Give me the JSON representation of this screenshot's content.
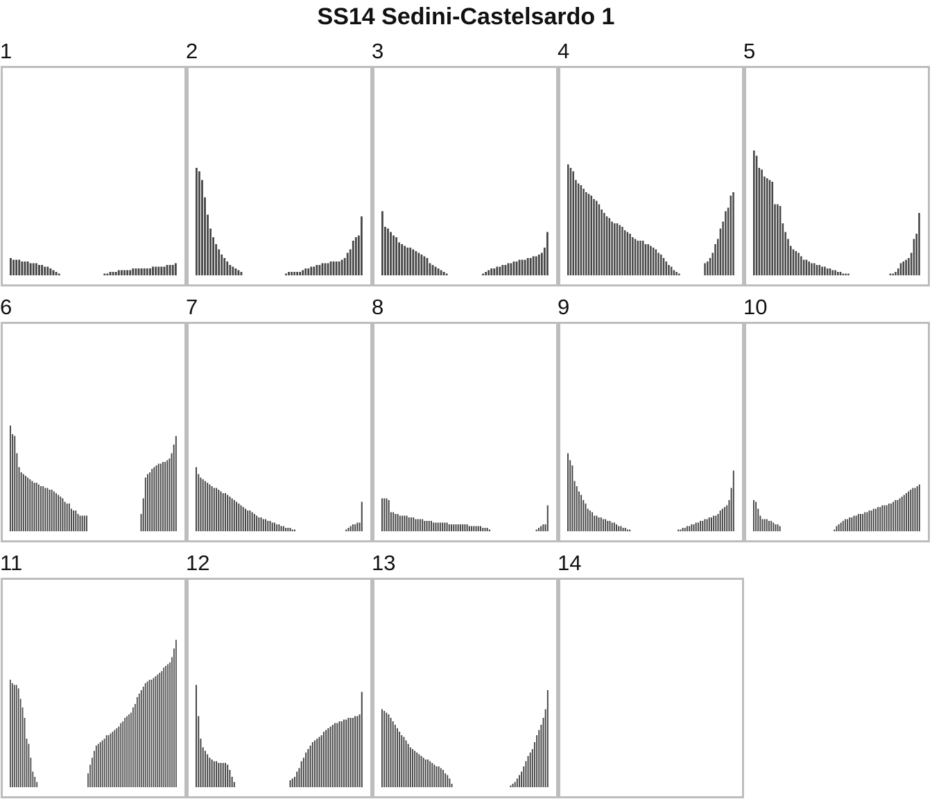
{
  "page_title": "SS14 Sedini-Castelsardo 1",
  "colors": {
    "bar": "#474747",
    "frame": "#bdbdbd",
    "background": "#ffffff"
  },
  "chart_data": {
    "type": "bar",
    "title": "SS14 Sedini-Castelsardo 1",
    "layout": "small-multiples",
    "y_range": [
      0,
      100
    ],
    "panels": [
      {
        "label": "1",
        "values": [
          10,
          9,
          9,
          9,
          8,
          8,
          8,
          7,
          7,
          7,
          6,
          6,
          5,
          5,
          4,
          3,
          2,
          1,
          0,
          0,
          0,
          0,
          0,
          0,
          0,
          0,
          0,
          0,
          0,
          0,
          0,
          0,
          0,
          1,
          1,
          2,
          2,
          2,
          3,
          3,
          3,
          3,
          3,
          4,
          4,
          4,
          4,
          4,
          4,
          4,
          5,
          5,
          5,
          5,
          5,
          6,
          6,
          6,
          7
        ]
      },
      {
        "label": "2",
        "values": [
          62,
          60,
          55,
          45,
          35,
          27,
          22,
          18,
          15,
          12,
          10,
          8,
          6,
          5,
          4,
          3,
          2,
          0,
          0,
          0,
          0,
          0,
          0,
          0,
          0,
          0,
          0,
          0,
          0,
          0,
          0,
          0,
          1,
          2,
          2,
          2,
          2,
          2,
          3,
          4,
          4,
          5,
          5,
          6,
          6,
          7,
          7,
          7,
          8,
          8,
          8,
          8,
          9,
          10,
          13,
          15,
          20,
          22,
          23,
          34
        ]
      },
      {
        "label": "3",
        "values": [
          37,
          28,
          27,
          25,
          23,
          22,
          19,
          18,
          17,
          16,
          16,
          15,
          14,
          13,
          12,
          11,
          10,
          7,
          6,
          5,
          4,
          3,
          2,
          1,
          0,
          0,
          0,
          0,
          0,
          0,
          0,
          0,
          0,
          0,
          0,
          0,
          1,
          2,
          3,
          4,
          4,
          5,
          5,
          6,
          6,
          7,
          7,
          8,
          8,
          9,
          9,
          9,
          10,
          10,
          11,
          11,
          12,
          13,
          16,
          25
        ]
      },
      {
        "label": "4",
        "values": [
          64,
          62,
          60,
          55,
          53,
          52,
          50,
          48,
          47,
          46,
          44,
          43,
          41,
          38,
          36,
          34,
          33,
          31,
          30,
          30,
          29,
          28,
          26,
          25,
          24,
          22,
          21,
          20,
          20,
          20,
          18,
          18,
          17,
          16,
          15,
          13,
          12,
          10,
          8,
          6,
          5,
          3,
          2,
          1,
          0,
          0,
          0,
          0,
          0,
          0,
          0,
          0,
          0,
          7,
          8,
          10,
          13,
          18,
          21,
          27,
          31,
          37,
          39,
          46,
          48
        ]
      },
      {
        "label": "5",
        "values": [
          72,
          69,
          62,
          61,
          57,
          56,
          55,
          54,
          41,
          41,
          40,
          30,
          25,
          21,
          17,
          15,
          14,
          13,
          11,
          9,
          9,
          8,
          7,
          7,
          6,
          6,
          5,
          5,
          4,
          4,
          3,
          3,
          2,
          2,
          1,
          1,
          1,
          0,
          0,
          0,
          0,
          0,
          0,
          0,
          0,
          0,
          0,
          0,
          0,
          0,
          0,
          0,
          1,
          1,
          2,
          4,
          7,
          8,
          9,
          10,
          13,
          21,
          24,
          36
        ]
      },
      {
        "label": "6",
        "values": [
          61,
          56,
          55,
          45,
          37,
          34,
          33,
          32,
          31,
          30,
          29,
          28,
          28,
          27,
          26,
          26,
          25,
          25,
          24,
          24,
          23,
          22,
          21,
          20,
          19,
          17,
          16,
          16,
          13,
          12,
          12,
          10,
          9,
          9,
          9,
          9,
          0,
          0,
          0,
          0,
          0,
          0,
          0,
          0,
          0,
          0,
          0,
          0,
          0,
          0,
          0,
          0,
          0,
          0,
          0,
          0,
          0,
          0,
          0,
          0,
          10,
          19,
          31,
          33,
          34,
          36,
          37,
          38,
          39,
          39,
          40,
          40,
          41,
          42,
          45,
          50,
          55
        ]
      },
      {
        "label": "7",
        "values": [
          37,
          33,
          31,
          30,
          29,
          28,
          27,
          26,
          25,
          25,
          24,
          23,
          22,
          22,
          21,
          20,
          19,
          18,
          17,
          16,
          15,
          14,
          13,
          12,
          12,
          11,
          10,
          9,
          8,
          8,
          7,
          7,
          6,
          6,
          5,
          5,
          4,
          4,
          3,
          3,
          2,
          2,
          2,
          1,
          1,
          0,
          0,
          0,
          0,
          0,
          0,
          0,
          0,
          0,
          0,
          0,
          0,
          0,
          0,
          0,
          0,
          0,
          0,
          0,
          0,
          0,
          0,
          1,
          2,
          3,
          4,
          4,
          5,
          5,
          17
        ]
      },
      {
        "label": "8",
        "values": [
          19,
          19,
          19,
          18,
          11,
          11,
          10,
          10,
          9,
          9,
          9,
          9,
          8,
          8,
          8,
          7,
          7,
          7,
          7,
          6,
          6,
          6,
          6,
          5,
          5,
          5,
          5,
          5,
          5,
          5,
          4,
          4,
          4,
          4,
          4,
          4,
          4,
          4,
          4,
          3,
          3,
          3,
          3,
          3,
          3,
          2,
          2,
          2,
          1,
          0,
          0,
          0,
          0,
          0,
          0,
          0,
          0,
          0,
          0,
          0,
          0,
          0,
          0,
          0,
          0,
          0,
          0,
          0,
          0,
          1,
          2,
          3,
          4,
          4,
          15
        ]
      },
      {
        "label": "9",
        "values": [
          45,
          41,
          38,
          29,
          26,
          23,
          21,
          18,
          16,
          13,
          12,
          11,
          9,
          9,
          8,
          8,
          7,
          7,
          6,
          6,
          5,
          5,
          4,
          3,
          3,
          2,
          2,
          1,
          1,
          0,
          0,
          0,
          0,
          0,
          0,
          0,
          0,
          0,
          0,
          0,
          0,
          0,
          0,
          0,
          0,
          0,
          0,
          0,
          0,
          0,
          1,
          1,
          2,
          2,
          3,
          3,
          4,
          4,
          5,
          5,
          6,
          6,
          7,
          7,
          8,
          8,
          9,
          9,
          10,
          12,
          13,
          14,
          15,
          18,
          25,
          35
        ]
      },
      {
        "label": "10",
        "values": [
          18,
          17,
          13,
          9,
          7,
          7,
          7,
          6,
          6,
          5,
          4,
          4,
          3,
          0,
          0,
          0,
          0,
          0,
          0,
          0,
          0,
          0,
          0,
          0,
          0,
          0,
          0,
          0,
          0,
          0,
          0,
          0,
          0,
          0,
          0,
          0,
          0,
          1,
          3,
          4,
          5,
          6,
          7,
          7,
          8,
          8,
          9,
          9,
          10,
          10,
          10,
          11,
          11,
          12,
          12,
          13,
          13,
          14,
          14,
          15,
          15,
          15,
          16,
          16,
          17,
          18,
          18,
          19,
          20,
          21,
          22,
          23,
          24,
          25,
          25,
          26,
          27
        ]
      },
      {
        "label": "11",
        "values": [
          62,
          60,
          59,
          59,
          57,
          51,
          46,
          40,
          28,
          25,
          17,
          9,
          6,
          3,
          0,
          0,
          0,
          0,
          0,
          0,
          0,
          0,
          0,
          0,
          0,
          0,
          0,
          0,
          0,
          0,
          0,
          0,
          0,
          0,
          0,
          0,
          0,
          0,
          8,
          13,
          17,
          21,
          24,
          25,
          26,
          27,
          28,
          30,
          30,
          31,
          32,
          33,
          34,
          35,
          37,
          38,
          40,
          41,
          42,
          43,
          46,
          48,
          52,
          54,
          56,
          58,
          60,
          61,
          62,
          62,
          63,
          64,
          65,
          66,
          67,
          69,
          70,
          71,
          72,
          75,
          80,
          85
        ]
      },
      {
        "label": "12",
        "values": [
          59,
          41,
          28,
          23,
          21,
          19,
          17,
          16,
          15,
          15,
          14,
          14,
          14,
          14,
          13,
          10,
          6,
          3,
          0,
          0,
          0,
          0,
          0,
          0,
          0,
          0,
          0,
          0,
          0,
          0,
          0,
          0,
          0,
          0,
          0,
          0,
          0,
          0,
          0,
          0,
          0,
          0,
          4,
          5,
          6,
          9,
          11,
          15,
          17,
          20,
          22,
          24,
          26,
          27,
          28,
          29,
          30,
          32,
          33,
          34,
          35,
          36,
          37,
          37,
          38,
          38,
          39,
          39,
          40,
          40,
          40,
          41,
          41,
          42,
          55
        ]
      },
      {
        "label": "13",
        "values": [
          45,
          44,
          43,
          42,
          40,
          38,
          36,
          34,
          32,
          30,
          29,
          27,
          25,
          23,
          22,
          21,
          20,
          19,
          18,
          17,
          16,
          16,
          15,
          14,
          13,
          12,
          12,
          11,
          10,
          8,
          7,
          5,
          2,
          0,
          0,
          0,
          0,
          0,
          0,
          0,
          0,
          0,
          0,
          0,
          0,
          0,
          0,
          0,
          0,
          0,
          0,
          0,
          0,
          0,
          0,
          0,
          0,
          0,
          0,
          1,
          2,
          3,
          5,
          7,
          9,
          12,
          15,
          18,
          20,
          22,
          26,
          30,
          33,
          36,
          40,
          45,
          56
        ]
      },
      {
        "label": "14",
        "values": []
      }
    ]
  }
}
